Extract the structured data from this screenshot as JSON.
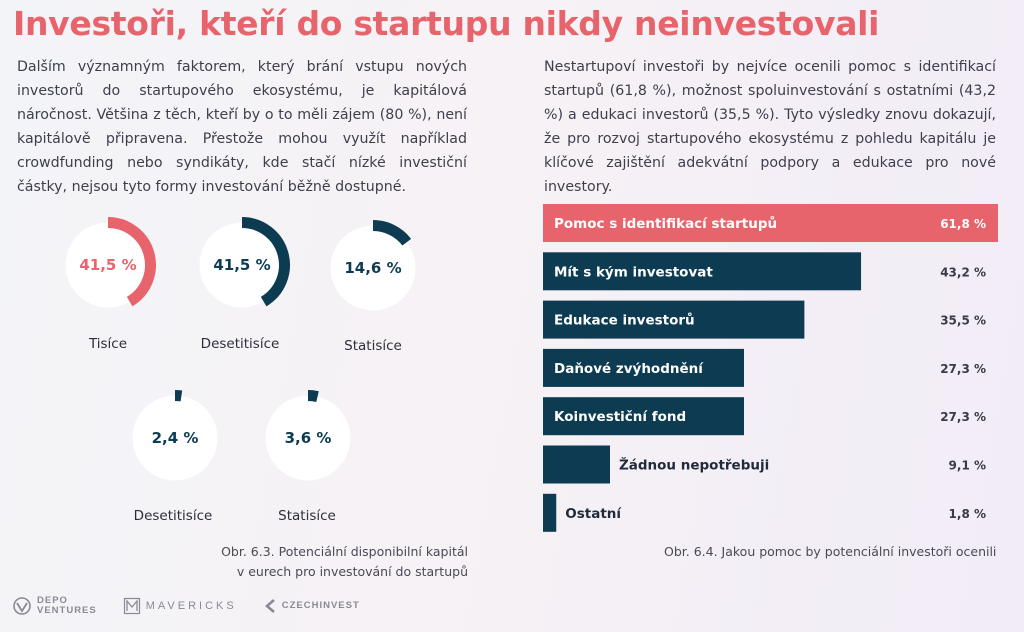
{
  "title": "Investoři, kteří do startupu nikdy neinvestovali",
  "left_paragraph": "Dalším významným faktorem, který brání vstupu nových investorů do startupového ekosystému, je kapitálová náročnost. Většina z těch, kteří by o to měli zájem (80 %), není kapitálově připravena. Přestože mohou využít například crowdfunding nebo syndikáty, kde stačí nízké investiční částky, nejsou tyto formy investování běžně dostupné.",
  "right_paragraph": "Nestartupoví investoři by nejvíce ocenili pomoc s identifikací startupů (61,8 %), možnost spoluinvestování s ostatními (43,2 %) a edukaci investorů (35,5 %). Tyto výsledky znovu dokazují, že pro rozvoj startupového ekosystému z pohledu kapitálu je klíčové zajištění adekvátní podpory a edukace pro nové investory.",
  "colors": {
    "accent": "#e8646d",
    "dark": "#0d3b52",
    "ring_bg": "#ffffff",
    "text": "#3f3f4c"
  },
  "chart_data": [
    {
      "type": "pie",
      "subtype": "donut",
      "caption": "Obr. 6.3. Potenciální disponibilní kapitál\nv eurech pro investování do startupů",
      "categories": [
        "Tisíce",
        "Desetitisíce",
        "Statisíce",
        "Desetitisíce",
        "Statisíce"
      ],
      "values": [
        41.5,
        41.5,
        14.6,
        2.4,
        3.6
      ],
      "labels": [
        "41,5 %",
        "41,5 %",
        "14,6 %",
        "2,4 %",
        "3,6 %"
      ],
      "highlight_index": 0
    },
    {
      "type": "bar",
      "orientation": "horizontal",
      "caption": "Obr. 6.4. Jakou pomoc by potenciální investoři ocenili",
      "categories": [
        "Pomoc s identifikací startupů",
        "Mít s kým investovat",
        "Edukace investorů",
        "Daňové zvýhodnění",
        "Koinvestiční fond",
        "Žádnou nepotřebuji",
        "Ostatní"
      ],
      "values": [
        61.8,
        43.2,
        35.5,
        27.3,
        27.3,
        9.1,
        1.8
      ],
      "labels": [
        "61,8 %",
        "43,2 %",
        "35,5 %",
        "27,3 %",
        "27,3 %",
        "9,1 %",
        "1,8 %"
      ],
      "highlight_index": 0,
      "xlim": [
        0,
        61.8
      ]
    }
  ],
  "footer": {
    "logos": [
      {
        "icon": "depo-ventures-icon",
        "text": "DEPO\nVENTURES"
      },
      {
        "icon": "mavericks-icon",
        "text": "MAVERICKS"
      },
      {
        "icon": "czechinvest-icon",
        "text": "CZECHINVEST"
      }
    ]
  }
}
